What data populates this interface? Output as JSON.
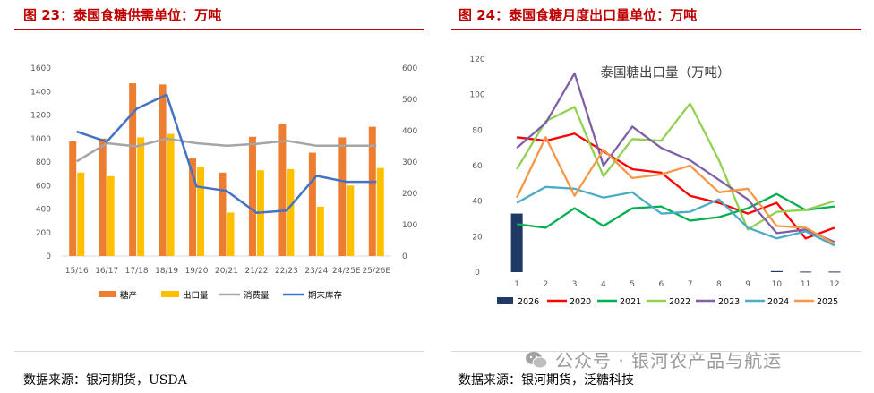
{
  "left": {
    "title": "图 23：泰国食糖供需单位：万吨",
    "source": "数据来源：银河期货，USDA"
  },
  "right": {
    "title": "图 24：泰国食糖月度出口量单位：万吨",
    "source": "数据来源：银河期货，泛糖科技"
  },
  "watermark": "公众号 · 银河农产品与航运",
  "colors": {
    "title_red": "#c00000",
    "production": "#ed7d31",
    "export": "#ffc000",
    "consumption": "#a5a5a5",
    "stocks": "#4472c4",
    "y2026": "#1f3864",
    "y2020": "#ff0000",
    "y2021": "#00b050",
    "y2022": "#92d050",
    "y2023": "#7f5fa6",
    "y2024": "#4bacc6",
    "y2025": "#f79646"
  },
  "chart_data": [
    {
      "type": "bar",
      "title": "",
      "categories": [
        "15/16",
        "16/17",
        "17/18",
        "18/19",
        "19/20",
        "20/21",
        "21/22",
        "22/23",
        "23/24",
        "24/25E",
        "25/26E"
      ],
      "y_left": {
        "min": 0,
        "max": 1600,
        "step": 200
      },
      "y_right": {
        "min": 0,
        "max": 600,
        "step": 100
      },
      "series": [
        {
          "name": "糖产",
          "kind": "bar",
          "axis": "left",
          "values": [
            975,
            1000,
            1470,
            1460,
            830,
            710,
            1015,
            1120,
            880,
            1010,
            1100
          ]
        },
        {
          "name": "出口量",
          "kind": "bar",
          "axis": "left",
          "values": [
            710,
            680,
            1010,
            1040,
            760,
            370,
            730,
            740,
            420,
            600,
            750
          ]
        },
        {
          "name": "消费量",
          "kind": "line",
          "axis": "right",
          "values": [
            302,
            360,
            350,
            375,
            360,
            352,
            358,
            368,
            352,
            352,
            352
          ]
        },
        {
          "name": "期末库存",
          "kind": "line",
          "axis": "right",
          "values": [
            397,
            365,
            470,
            515,
            222,
            208,
            138,
            145,
            256,
            237,
            237
          ]
        }
      ],
      "legend_position": "bottom"
    },
    {
      "type": "line",
      "title": "泰国糖出口量（万吨）",
      "x": [
        "1",
        "2",
        "3",
        "4",
        "5",
        "6",
        "7",
        "8",
        "9",
        "10",
        "11",
        "12"
      ],
      "ylim": [
        0,
        120
      ],
      "y_step": 20,
      "series": [
        {
          "name": "2026",
          "kind": "bar",
          "values": [
            33,
            null,
            null,
            null,
            null,
            null,
            null,
            null,
            null,
            0.6,
            0.3,
            0.3
          ]
        },
        {
          "name": "2020",
          "values": [
            76,
            74,
            78,
            68,
            58,
            56,
            43,
            39,
            33,
            39,
            19,
            25
          ]
        },
        {
          "name": "2021",
          "values": [
            27,
            25,
            36,
            26,
            36,
            37,
            29,
            31,
            36,
            44,
            35,
            37
          ]
        },
        {
          "name": "2022",
          "values": [
            58,
            85,
            93,
            54,
            75,
            74,
            95,
            63,
            24,
            34,
            35,
            40
          ]
        },
        {
          "name": "2023",
          "values": [
            70,
            84,
            112,
            60,
            82,
            70,
            63,
            52,
            41,
            22,
            24,
            17
          ]
        },
        {
          "name": "2024",
          "values": [
            39,
            48,
            47,
            42,
            45,
            33,
            34,
            41,
            25,
            19,
            23,
            15
          ]
        },
        {
          "name": "2025",
          "values": [
            42,
            76,
            43,
            69,
            53,
            55,
            60,
            45,
            47,
            26,
            25,
            16
          ]
        }
      ],
      "legend_position": "bottom"
    }
  ]
}
